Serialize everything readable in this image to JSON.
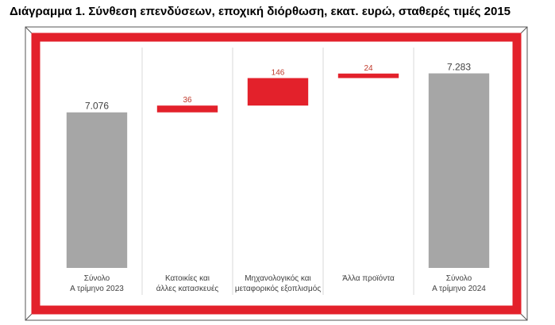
{
  "figure_title": "Διάγραμμα 1. Σύνθεση επενδύσεων, εποχική διόρθωση, εκατ. ευρώ, σταθερές τιμές 2015",
  "colors": {
    "frame": "#e3212b",
    "total_bar": "#a6a6a6",
    "delta_bar": "#e3212b",
    "total_label": "#404040",
    "delta_label": "#c0392b",
    "axis_text": "#404040",
    "grid": "#d9d9d9"
  },
  "chart_data": {
    "type": "bar",
    "subtype": "waterfall",
    "title": "Διάγραμμα 1. Σύνθεση επενδύσεων, εποχική διόρθωση, εκατ. ευρώ, σταθερές τιμές 2015",
    "categories": [
      [
        "Σύνολο",
        "Α τρίμηνο 2023"
      ],
      [
        "Κατοικίες και",
        "άλλες κατασκευές"
      ],
      [
        "Μηχανολογικός και",
        "μεταφορικός εξοπλισμός"
      ],
      [
        "Άλλα προϊόντα"
      ],
      [
        "Σύνολο",
        "Α τρίμηνο 2024"
      ]
    ],
    "values": [
      7076,
      36,
      146,
      24,
      7283
    ],
    "value_labels": [
      "7.076",
      "36",
      "146",
      "24",
      "7.283"
    ],
    "kinds": [
      "total",
      "delta",
      "delta",
      "delta",
      "total"
    ],
    "ylim": [
      6250,
      7420
    ],
    "xlabel": "",
    "ylabel": "",
    "grid": "vertical separators",
    "legend": "none"
  }
}
